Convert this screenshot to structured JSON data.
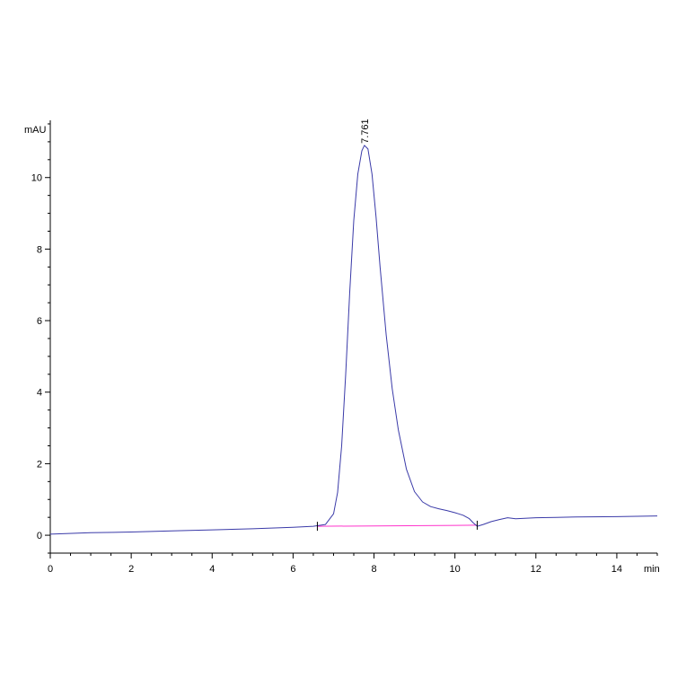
{
  "chart_data": {
    "type": "line",
    "title": "",
    "y_unit": "mAU",
    "x_unit": "min",
    "xlim": [
      0,
      15
    ],
    "ylim": [
      -0.5,
      11.6
    ],
    "x_ticks": [
      0,
      2,
      4,
      6,
      8,
      10,
      12,
      14
    ],
    "y_ticks": [
      0,
      2,
      4,
      6,
      8,
      10
    ],
    "grid": false,
    "legend": "none",
    "series": [
      {
        "color": "#3a3aa8",
        "x": [
          0,
          1,
          2,
          3,
          4,
          5,
          6,
          6.5,
          6.8,
          7.0,
          7.1,
          7.2,
          7.3,
          7.4,
          7.5,
          7.6,
          7.7,
          7.761,
          7.85,
          7.95,
          8.05,
          8.15,
          8.3,
          8.45,
          8.6,
          8.8,
          9.0,
          9.2,
          9.4,
          9.6,
          9.8,
          10.0,
          10.2,
          10.35,
          10.45,
          10.55,
          10.7,
          10.9,
          11.1,
          11.3,
          11.5,
          12,
          12.5,
          13,
          14,
          15
        ],
        "y": [
          0.03,
          0.07,
          0.09,
          0.12,
          0.15,
          0.18,
          0.22,
          0.25,
          0.3,
          0.6,
          1.2,
          2.5,
          4.5,
          6.8,
          8.8,
          10.1,
          10.75,
          10.9,
          10.8,
          10.1,
          8.9,
          7.5,
          5.6,
          4.1,
          2.95,
          1.85,
          1.22,
          0.93,
          0.8,
          0.74,
          0.69,
          0.63,
          0.56,
          0.47,
          0.35,
          0.25,
          0.3,
          0.38,
          0.44,
          0.49,
          0.46,
          0.49,
          0.5,
          0.51,
          0.52,
          0.54
        ]
      }
    ],
    "baseline": {
      "color": "#ff33cc",
      "x": [
        6.6,
        10.55
      ],
      "y": [
        0.25,
        0.28
      ]
    },
    "annotations": [
      {
        "text": "7.761",
        "x": 7.761,
        "y": 10.9
      }
    ],
    "markers": [
      6.6,
      10.55
    ]
  }
}
